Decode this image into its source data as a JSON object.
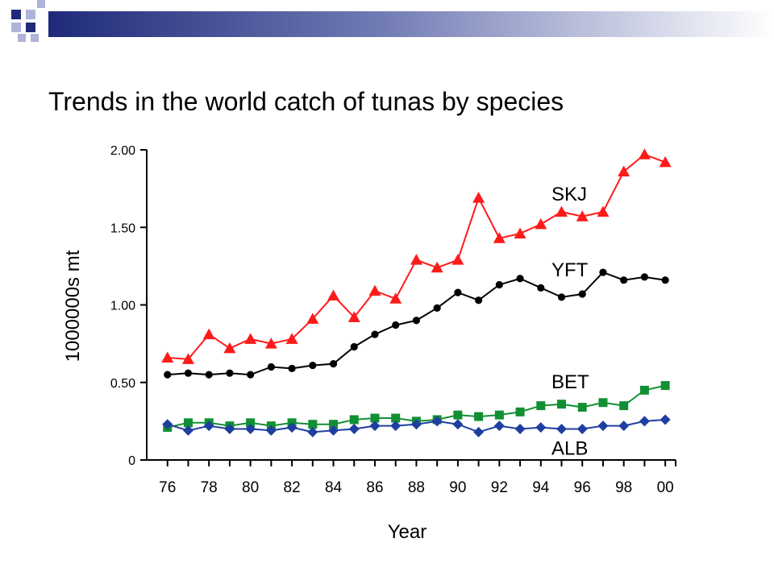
{
  "slide": {
    "title": "Trends in the world catch of tunas by species"
  },
  "colors": {
    "deco_dark": "#1f2a7a",
    "deco_light": "#aeb4d8",
    "SKJ": "#ff1a1a",
    "YFT": "#000000",
    "BET": "#119033",
    "ALB": "#1f3fa0"
  },
  "chart_data": {
    "type": "line",
    "xlabel": "Year",
    "ylabel": "1000000s mt",
    "ylim": [
      0,
      2.0
    ],
    "xlim": [
      1975,
      2000.5
    ],
    "y_ticks": [
      {
        "value": 0,
        "label": "0"
      },
      {
        "value": 0.5,
        "label": "0.50"
      },
      {
        "value": 1.0,
        "label": "1.00"
      },
      {
        "value": 1.5,
        "label": "1.50"
      },
      {
        "value": 2.0,
        "label": "2.00"
      }
    ],
    "x_tick_labels": [
      {
        "value": 1976,
        "label": "76"
      },
      {
        "value": 1978,
        "label": "78"
      },
      {
        "value": 1980,
        "label": "80"
      },
      {
        "value": 1982,
        "label": "82"
      },
      {
        "value": 1984,
        "label": "84"
      },
      {
        "value": 1986,
        "label": "86"
      },
      {
        "value": 1988,
        "label": "88"
      },
      {
        "value": 1990,
        "label": "90"
      },
      {
        "value": 1992,
        "label": "92"
      },
      {
        "value": 1994,
        "label": "94"
      },
      {
        "value": 1996,
        "label": "96"
      },
      {
        "value": 1998,
        "label": "98"
      },
      {
        "value": 2000,
        "label": "00"
      }
    ],
    "x": [
      1976,
      1977,
      1978,
      1979,
      1980,
      1981,
      1982,
      1983,
      1984,
      1985,
      1986,
      1987,
      1988,
      1989,
      1990,
      1991,
      1992,
      1993,
      1994,
      1995,
      1996,
      1997,
      1998,
      1999,
      2000
    ],
    "series": [
      {
        "name": "SKJ",
        "marker": "triangle",
        "label_y": 1.72,
        "values": [
          0.66,
          0.65,
          0.81,
          0.72,
          0.78,
          0.75,
          0.78,
          0.91,
          1.06,
          0.92,
          1.09,
          1.04,
          1.29,
          1.24,
          1.29,
          1.69,
          1.43,
          1.46,
          1.52,
          1.6,
          1.57,
          1.6,
          1.86,
          1.97,
          1.92
        ]
      },
      {
        "name": "YFT",
        "marker": "circle",
        "label_y": 1.23,
        "values": [
          0.55,
          0.56,
          0.55,
          0.56,
          0.55,
          0.6,
          0.59,
          0.61,
          0.62,
          0.73,
          0.81,
          0.87,
          0.9,
          0.98,
          1.08,
          1.03,
          1.13,
          1.17,
          1.11,
          1.05,
          1.07,
          1.21,
          1.16,
          1.18,
          1.16
        ]
      },
      {
        "name": "BET",
        "marker": "square",
        "label_y": 0.51,
        "values": [
          0.21,
          0.24,
          0.24,
          0.22,
          0.24,
          0.22,
          0.24,
          0.23,
          0.23,
          0.26,
          0.27,
          0.27,
          0.25,
          0.26,
          0.29,
          0.28,
          0.29,
          0.31,
          0.35,
          0.36,
          0.34,
          0.37,
          0.35,
          0.45,
          0.48
        ]
      },
      {
        "name": "ALB",
        "marker": "diamond",
        "label_y": 0.08,
        "values": [
          0.23,
          0.19,
          0.22,
          0.2,
          0.2,
          0.19,
          0.21,
          0.18,
          0.19,
          0.2,
          0.22,
          0.22,
          0.23,
          0.25,
          0.23,
          0.18,
          0.22,
          0.2,
          0.21,
          0.2,
          0.2,
          0.22,
          0.22,
          0.25,
          0.26
        ]
      }
    ]
  }
}
